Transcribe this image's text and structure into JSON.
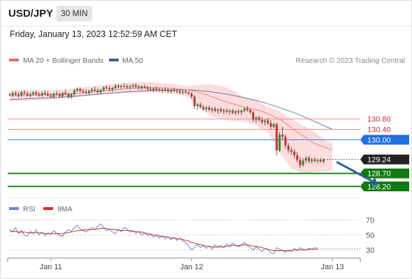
{
  "header": {
    "symbol": "USD/JPY",
    "timeframe": "30 MIN"
  },
  "datetime": "Friday, January 13, 2023 12:52:59 AM CET",
  "legend": {
    "bollinger_label": "MA 20 + Bollinger Bands",
    "ma50_label": "MA 50",
    "copyright": "Research © 2023 Trading Central"
  },
  "rsi_legend": {
    "rsi_label": "RSI",
    "ma_label": "9MA"
  },
  "colors": {
    "candle_up": "#2e8b2e",
    "candle_down": "#c83232",
    "ma20": "#e86b6b",
    "ma50": "#3f5f9f",
    "bollinger_fill": "#fcd6d6",
    "resistance": "#e89090",
    "pivot": "#4c8fe8",
    "support": "#1a8a1a",
    "arrow": "#2e5fa0",
    "rsi": "#6a82d8",
    "rsi_ma": "#d42a2a"
  },
  "chart_data": {
    "type": "candlestick",
    "instrument": "USD/JPY",
    "interval": "30 MIN",
    "ylim": [
      127.75,
      132.7
    ],
    "levels": [
      {
        "name": "resistance-2",
        "value": 130.8,
        "label": "130.80",
        "kind": "resistance"
      },
      {
        "name": "resistance-1",
        "value": 130.4,
        "label": "130.40",
        "kind": "resistance"
      },
      {
        "name": "pivot",
        "value": 130.0,
        "label": "130.00",
        "kind": "pivot"
      },
      {
        "name": "last-price",
        "value": 129.24,
        "label": "129.24",
        "kind": "last"
      },
      {
        "name": "support-1",
        "value": 128.7,
        "label": "128.70",
        "kind": "support"
      },
      {
        "name": "support-2",
        "value": 128.2,
        "label": "128.20",
        "kind": "support"
      }
    ],
    "x_ticks": [
      {
        "label": "Jan 11",
        "index": 14
      },
      {
        "label": "Jan 12",
        "index": 62
      },
      {
        "label": "Jan 13",
        "index": 110
      }
    ],
    "projection": {
      "from_index": 110,
      "from_price": 129.2,
      "to_index": 125,
      "to_price": 128.2
    },
    "candles": [
      [
        131.75,
        131.82,
        131.68,
        131.72
      ],
      [
        131.72,
        131.86,
        131.66,
        131.8
      ],
      [
        131.8,
        131.88,
        131.7,
        131.74
      ],
      [
        131.74,
        131.84,
        131.62,
        131.7
      ],
      [
        131.7,
        131.88,
        131.66,
        131.83
      ],
      [
        131.83,
        131.92,
        131.74,
        131.78
      ],
      [
        131.78,
        131.86,
        131.66,
        131.7
      ],
      [
        131.7,
        131.82,
        131.62,
        131.76
      ],
      [
        131.76,
        131.88,
        131.7,
        131.82
      ],
      [
        131.82,
        131.9,
        131.72,
        131.75
      ],
      [
        131.75,
        131.84,
        131.66,
        131.71
      ],
      [
        131.71,
        131.86,
        131.66,
        131.8
      ],
      [
        131.8,
        131.9,
        131.72,
        131.76
      ],
      [
        131.76,
        131.86,
        131.68,
        131.7
      ],
      [
        131.7,
        131.8,
        131.6,
        131.66
      ],
      [
        131.66,
        131.82,
        131.6,
        131.78
      ],
      [
        131.78,
        131.88,
        131.7,
        131.74
      ],
      [
        131.74,
        131.82,
        131.64,
        131.68
      ],
      [
        131.68,
        131.84,
        131.62,
        131.8
      ],
      [
        131.8,
        131.92,
        131.72,
        131.75
      ],
      [
        131.75,
        131.82,
        131.6,
        131.64
      ],
      [
        131.64,
        131.8,
        131.58,
        131.76
      ],
      [
        131.76,
        131.96,
        131.7,
        131.9
      ],
      [
        131.9,
        132.02,
        131.84,
        131.96
      ],
      [
        131.96,
        132.04,
        131.84,
        131.88
      ],
      [
        131.88,
        131.96,
        131.78,
        131.84
      ],
      [
        131.84,
        131.94,
        131.76,
        131.8
      ],
      [
        131.8,
        131.92,
        131.74,
        131.88
      ],
      [
        131.88,
        132.0,
        131.82,
        131.94
      ],
      [
        131.94,
        132.04,
        131.86,
        131.9
      ],
      [
        131.9,
        131.98,
        131.78,
        131.84
      ],
      [
        131.84,
        131.96,
        131.76,
        131.92
      ],
      [
        131.92,
        132.06,
        131.86,
        132.02
      ],
      [
        132.02,
        132.1,
        131.94,
        131.98
      ],
      [
        131.98,
        132.08,
        131.88,
        131.94
      ],
      [
        131.94,
        132.04,
        131.86,
        132.0
      ],
      [
        132.0,
        132.14,
        131.94,
        132.08
      ],
      [
        132.08,
        132.16,
        131.98,
        132.04
      ],
      [
        132.04,
        132.12,
        131.96,
        132.08
      ],
      [
        132.08,
        132.18,
        132.0,
        132.06
      ],
      [
        132.06,
        132.14,
        131.96,
        132.02
      ],
      [
        132.02,
        132.12,
        131.94,
        132.06
      ],
      [
        132.06,
        132.16,
        131.98,
        132.1
      ],
      [
        132.1,
        132.18,
        132.0,
        132.04
      ],
      [
        132.04,
        132.12,
        131.94,
        132.0
      ],
      [
        132.0,
        132.1,
        131.92,
        132.06
      ],
      [
        132.06,
        132.14,
        131.96,
        132.02
      ],
      [
        132.02,
        132.08,
        131.9,
        131.96
      ],
      [
        131.96,
        132.04,
        131.88,
        131.92
      ],
      [
        131.92,
        132.02,
        131.84,
        131.98
      ],
      [
        131.98,
        132.06,
        131.88,
        131.94
      ],
      [
        131.94,
        132.0,
        131.86,
        131.9
      ],
      [
        131.9,
        131.98,
        131.82,
        131.94
      ],
      [
        131.94,
        132.02,
        131.86,
        131.9
      ],
      [
        131.9,
        131.98,
        131.82,
        131.86
      ],
      [
        131.86,
        131.96,
        131.8,
        131.92
      ],
      [
        131.92,
        132.0,
        131.84,
        131.88
      ],
      [
        131.88,
        131.94,
        131.8,
        131.86
      ],
      [
        131.86,
        131.92,
        131.76,
        131.82
      ],
      [
        131.82,
        131.9,
        131.74,
        131.86
      ],
      [
        131.86,
        131.92,
        131.78,
        131.82
      ],
      [
        131.82,
        131.88,
        131.72,
        131.78
      ],
      [
        131.78,
        131.84,
        131.6,
        131.66
      ],
      [
        131.66,
        131.72,
        131.2,
        131.3
      ],
      [
        131.3,
        131.42,
        131.16,
        131.36
      ],
      [
        131.36,
        131.44,
        131.2,
        131.26
      ],
      [
        131.26,
        131.34,
        131.1,
        131.18
      ],
      [
        131.18,
        131.3,
        131.08,
        131.24
      ],
      [
        131.24,
        131.32,
        131.1,
        131.16
      ],
      [
        131.16,
        131.26,
        131.04,
        131.2
      ],
      [
        131.2,
        131.28,
        131.06,
        131.12
      ],
      [
        131.12,
        131.22,
        131.0,
        131.16
      ],
      [
        131.16,
        131.26,
        131.04,
        131.1
      ],
      [
        131.1,
        131.2,
        130.98,
        131.14
      ],
      [
        131.14,
        131.22,
        131.02,
        131.08
      ],
      [
        131.08,
        131.18,
        130.96,
        131.12
      ],
      [
        131.12,
        131.2,
        130.98,
        131.04
      ],
      [
        131.04,
        131.14,
        130.94,
        131.1
      ],
      [
        131.1,
        131.18,
        130.98,
        131.06
      ],
      [
        131.06,
        131.16,
        130.96,
        131.12
      ],
      [
        131.12,
        131.26,
        131.06,
        131.2
      ],
      [
        131.2,
        131.3,
        131.08,
        131.14
      ],
      [
        131.14,
        131.22,
        131.0,
        131.06
      ],
      [
        131.06,
        131.12,
        130.7,
        130.78
      ],
      [
        130.78,
        130.92,
        130.66,
        130.86
      ],
      [
        130.86,
        130.94,
        130.7,
        130.76
      ],
      [
        130.76,
        130.86,
        130.6,
        130.68
      ],
      [
        130.68,
        130.8,
        130.56,
        130.74
      ],
      [
        130.74,
        130.84,
        130.58,
        130.64
      ],
      [
        130.64,
        130.76,
        130.4,
        130.5
      ],
      [
        130.5,
        130.66,
        130.44,
        130.6
      ],
      [
        130.6,
        130.66,
        129.4,
        129.58
      ],
      [
        129.58,
        130.3,
        129.52,
        130.2
      ],
      [
        130.2,
        130.5,
        130.02,
        130.12
      ],
      [
        130.12,
        130.2,
        129.66,
        129.78
      ],
      [
        129.78,
        129.88,
        129.5,
        129.6
      ],
      [
        129.6,
        129.72,
        129.42,
        129.54
      ],
      [
        129.54,
        129.64,
        129.3,
        129.4
      ],
      [
        129.4,
        129.54,
        129.14,
        129.22
      ],
      [
        129.22,
        129.34,
        128.9,
        129.02
      ],
      [
        129.02,
        129.3,
        128.96,
        129.2
      ],
      [
        129.2,
        129.36,
        129.1,
        129.3
      ],
      [
        129.3,
        129.38,
        129.1,
        129.18
      ],
      [
        129.18,
        129.3,
        129.08,
        129.24
      ],
      [
        129.24,
        129.32,
        129.12,
        129.18
      ],
      [
        129.18,
        129.28,
        129.08,
        129.22
      ],
      [
        129.22,
        129.3,
        129.12,
        129.16
      ],
      [
        129.16,
        129.28,
        129.08,
        129.24
      ]
    ],
    "ma20": [
      [
        0,
        131.7
      ],
      [
        10,
        131.72
      ],
      [
        20,
        131.76
      ],
      [
        30,
        131.86
      ],
      [
        40,
        131.97
      ],
      [
        48,
        132.02
      ],
      [
        56,
        131.98
      ],
      [
        62,
        131.9
      ],
      [
        68,
        131.7
      ],
      [
        74,
        131.45
      ],
      [
        80,
        131.25
      ],
      [
        86,
        131.1
      ],
      [
        92,
        130.8
      ],
      [
        98,
        130.3
      ],
      [
        104,
        129.85
      ],
      [
        110,
        129.6
      ]
    ],
    "bollinger_upper": [
      [
        0,
        131.92
      ],
      [
        8,
        131.9
      ],
      [
        16,
        131.93
      ],
      [
        24,
        132.0
      ],
      [
        32,
        132.12
      ],
      [
        40,
        132.2
      ],
      [
        48,
        132.22
      ],
      [
        55,
        132.16
      ],
      [
        60,
        132.08
      ],
      [
        64,
        132.1
      ],
      [
        68,
        132.14
      ],
      [
        72,
        132.08
      ],
      [
        76,
        131.92
      ],
      [
        80,
        131.65
      ],
      [
        84,
        131.52
      ],
      [
        88,
        131.28
      ],
      [
        92,
        131.1
      ],
      [
        96,
        130.8
      ],
      [
        100,
        130.55
      ],
      [
        104,
        130.3
      ],
      [
        108,
        129.95
      ],
      [
        110,
        129.9
      ]
    ],
    "bollinger_lower": [
      [
        0,
        131.48
      ],
      [
        8,
        131.52
      ],
      [
        16,
        131.56
      ],
      [
        24,
        131.66
      ],
      [
        32,
        131.78
      ],
      [
        40,
        131.8
      ],
      [
        48,
        131.82
      ],
      [
        55,
        131.78
      ],
      [
        60,
        131.7
      ],
      [
        64,
        131.3
      ],
      [
        68,
        130.95
      ],
      [
        72,
        130.8
      ],
      [
        76,
        130.7
      ],
      [
        80,
        130.7
      ],
      [
        84,
        130.55
      ],
      [
        88,
        130.3
      ],
      [
        92,
        129.5
      ],
      [
        96,
        128.9
      ],
      [
        100,
        128.7
      ],
      [
        104,
        128.75
      ],
      [
        108,
        128.78
      ],
      [
        110,
        128.8
      ]
    ],
    "ma50": [
      [
        0,
        131.55
      ],
      [
        10,
        131.6
      ],
      [
        20,
        131.66
      ],
      [
        30,
        131.75
      ],
      [
        40,
        131.85
      ],
      [
        48,
        131.9
      ],
      [
        56,
        131.92
      ],
      [
        62,
        131.92
      ],
      [
        68,
        131.86
      ],
      [
        74,
        131.76
      ],
      [
        80,
        131.62
      ],
      [
        86,
        131.46
      ],
      [
        92,
        131.24
      ],
      [
        98,
        131.0
      ],
      [
        104,
        130.7
      ],
      [
        110,
        130.4
      ]
    ],
    "rsi": {
      "label": "RSI",
      "ma_label": "9MA",
      "ylim": [
        20,
        80
      ],
      "ticks": [
        70,
        50,
        30
      ],
      "values": [
        58,
        54,
        60,
        52,
        56,
        50,
        48,
        55,
        52,
        57,
        50,
        54,
        49,
        53,
        51,
        56,
        52,
        50,
        48,
        54,
        57,
        55,
        60,
        63,
        58,
        56,
        54,
        58,
        60,
        57,
        62,
        65,
        60,
        56,
        58,
        54,
        52,
        57,
        55,
        60,
        58,
        54,
        56,
        52,
        55,
        50,
        53,
        49,
        52,
        47,
        50,
        46,
        49,
        45,
        48,
        44,
        47,
        43,
        46,
        42,
        40,
        35,
        30,
        34,
        38,
        33,
        36,
        32,
        35,
        31,
        37,
        34,
        36,
        33,
        38,
        35,
        39,
        36,
        34,
        37,
        40,
        36,
        33,
        30,
        34,
        31,
        28,
        32,
        30,
        26,
        25,
        33,
        31,
        29,
        27,
        30,
        28,
        32,
        29,
        33,
        31,
        30,
        32,
        31,
        33,
        32
      ],
      "ma_values": [
        55,
        55,
        55,
        54,
        54,
        54,
        53,
        53,
        53,
        53,
        53,
        53,
        52,
        52,
        52,
        52,
        52,
        52,
        52,
        53,
        53,
        54,
        55,
        56,
        56,
        57,
        57,
        57,
        57,
        58,
        58,
        59,
        59,
        59,
        58,
        58,
        57,
        57,
        56,
        56,
        56,
        56,
        55,
        55,
        54,
        54,
        53,
        52,
        51,
        50,
        50,
        49,
        48,
        48,
        47,
        46,
        46,
        45,
        45,
        44,
        43,
        42,
        40,
        39,
        38,
        37,
        36,
        35,
        35,
        34,
        34,
        34,
        34,
        34,
        35,
        35,
        36,
        36,
        36,
        36,
        37,
        37,
        36,
        35,
        35,
        34,
        33,
        32,
        31,
        30,
        29,
        29,
        29,
        29,
        29,
        29,
        29,
        30,
        30,
        30,
        30,
        30,
        31,
        31,
        31,
        31
      ]
    }
  }
}
